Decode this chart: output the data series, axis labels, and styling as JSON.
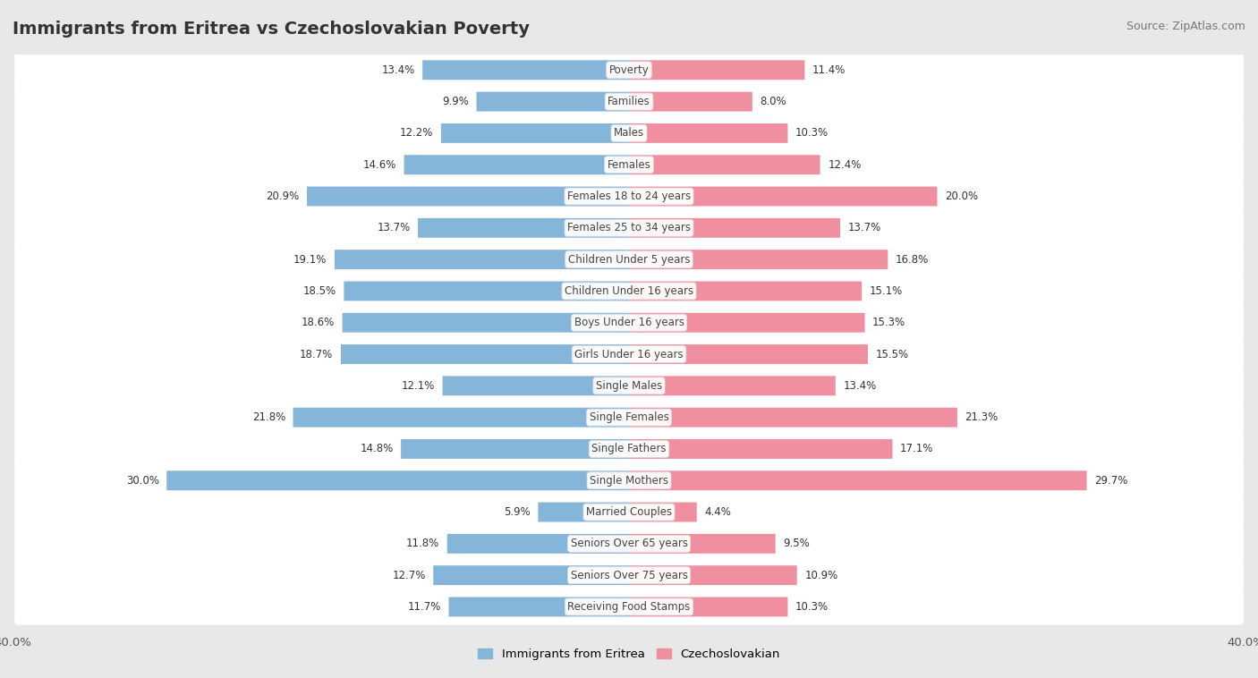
{
  "title": "Immigrants from Eritrea vs Czechoslovakian Poverty",
  "source": "Source: ZipAtlas.com",
  "categories": [
    "Poverty",
    "Families",
    "Males",
    "Females",
    "Females 18 to 24 years",
    "Females 25 to 34 years",
    "Children Under 5 years",
    "Children Under 16 years",
    "Boys Under 16 years",
    "Girls Under 16 years",
    "Single Males",
    "Single Females",
    "Single Fathers",
    "Single Mothers",
    "Married Couples",
    "Seniors Over 65 years",
    "Seniors Over 75 years",
    "Receiving Food Stamps"
  ],
  "eritrea_values": [
    13.4,
    9.9,
    12.2,
    14.6,
    20.9,
    13.7,
    19.1,
    18.5,
    18.6,
    18.7,
    12.1,
    21.8,
    14.8,
    30.0,
    5.9,
    11.8,
    12.7,
    11.7
  ],
  "czech_values": [
    11.4,
    8.0,
    10.3,
    12.4,
    20.0,
    13.7,
    16.8,
    15.1,
    15.3,
    15.5,
    13.4,
    21.3,
    17.1,
    29.7,
    4.4,
    9.5,
    10.9,
    10.3
  ],
  "eritrea_color": "#85b5d9",
  "czech_color": "#f08fa0",
  "eritrea_label": "Immigrants from Eritrea",
  "czech_label": "Czechoslovakian",
  "bg_color": "#e8e8e8",
  "row_color": "#ffffff",
  "xlim": 40.0,
  "title_fontsize": 14,
  "source_fontsize": 9,
  "label_fontsize": 8.5,
  "cat_fontsize": 8.5
}
